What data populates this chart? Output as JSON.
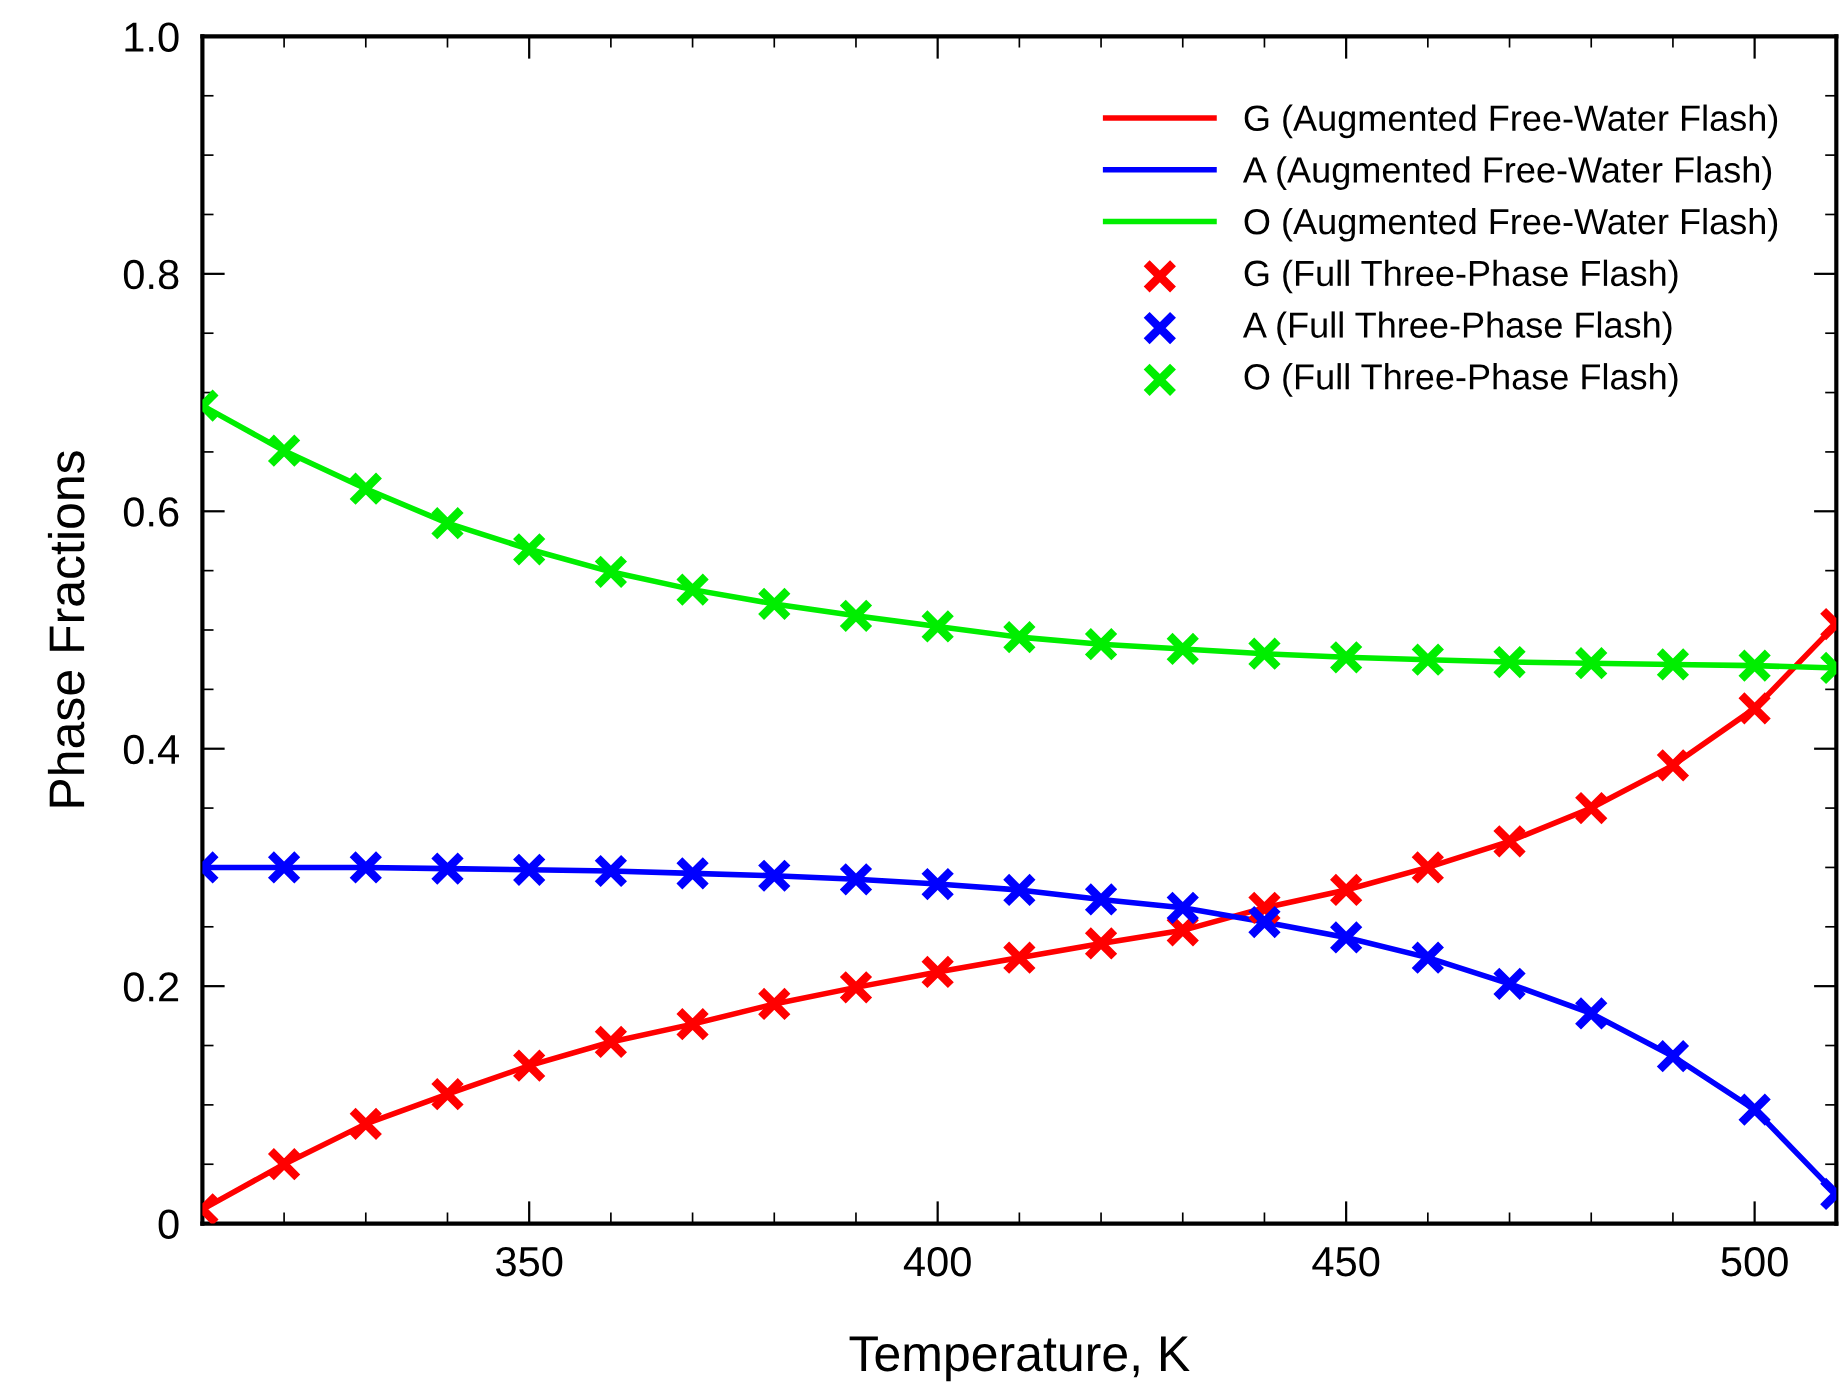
{
  "chart_data": {
    "type": "line",
    "xlabel": "Temperature, K",
    "ylabel": "Phase Fractions",
    "x": [
      310,
      320,
      330,
      340,
      350,
      360,
      370,
      380,
      390,
      400,
      410,
      420,
      430,
      440,
      450,
      460,
      470,
      480,
      490,
      500,
      510
    ],
    "series": [
      {
        "name": "G (Augmented Free-Water Flash)",
        "marker": "none",
        "color": "#ff0000",
        "values": [
          0.012,
          0.05,
          0.084,
          0.109,
          0.133,
          0.153,
          0.168,
          0.185,
          0.199,
          0.212,
          0.224,
          0.236,
          0.247,
          0.266,
          0.281,
          0.3,
          0.322,
          0.35,
          0.386,
          0.434,
          0.505
        ]
      },
      {
        "name": "A (Augmented Free-Water Flash)",
        "marker": "none",
        "color": "#0000ff",
        "values": [
          0.3,
          0.3,
          0.3,
          0.299,
          0.298,
          0.297,
          0.295,
          0.293,
          0.29,
          0.286,
          0.281,
          0.273,
          0.266,
          0.254,
          0.241,
          0.224,
          0.202,
          0.177,
          0.141,
          0.096,
          0.025
        ]
      },
      {
        "name": "O (Augmented Free-Water Flash)",
        "marker": "none",
        "color": "#00ee00",
        "values": [
          0.689,
          0.651,
          0.619,
          0.59,
          0.568,
          0.549,
          0.534,
          0.522,
          0.512,
          0.503,
          0.494,
          0.488,
          0.484,
          0.48,
          0.477,
          0.475,
          0.473,
          0.472,
          0.471,
          0.47,
          0.468
        ]
      },
      {
        "name": "G (Full Three-Phase Flash)",
        "type": "scatter",
        "marker": "cross",
        "color": "#ff0000",
        "values": [
          0.012,
          0.05,
          0.084,
          0.109,
          0.133,
          0.153,
          0.168,
          0.185,
          0.199,
          0.212,
          0.224,
          0.236,
          0.247,
          0.266,
          0.281,
          0.3,
          0.322,
          0.35,
          0.386,
          0.434,
          0.505
        ]
      },
      {
        "name": "A (Full Three-Phase Flash)",
        "type": "scatter",
        "marker": "cross",
        "color": "#0000ff",
        "values": [
          0.3,
          0.3,
          0.3,
          0.299,
          0.298,
          0.297,
          0.295,
          0.293,
          0.29,
          0.286,
          0.281,
          0.273,
          0.266,
          0.254,
          0.241,
          0.224,
          0.202,
          0.177,
          0.141,
          0.096,
          0.025
        ]
      },
      {
        "name": "O (Full Three-Phase Flash)",
        "type": "scatter",
        "marker": "cross",
        "color": "#00ee00",
        "values": [
          0.689,
          0.651,
          0.619,
          0.59,
          0.568,
          0.549,
          0.534,
          0.522,
          0.512,
          0.503,
          0.494,
          0.488,
          0.484,
          0.48,
          0.477,
          0.475,
          0.473,
          0.472,
          0.471,
          0.47,
          0.468
        ]
      }
    ],
    "line_style": "solid",
    "xlim": [
      310,
      510
    ],
    "xticks": [
      350,
      400,
      450,
      500
    ],
    "ylim": [
      0,
      1.0
    ],
    "yticks": [
      0,
      0.2,
      0.4,
      0.6,
      0.8,
      {
        "value": 1.0,
        "label": "1.0"
      }
    ],
    "grid": false,
    "legend": "top right"
  }
}
